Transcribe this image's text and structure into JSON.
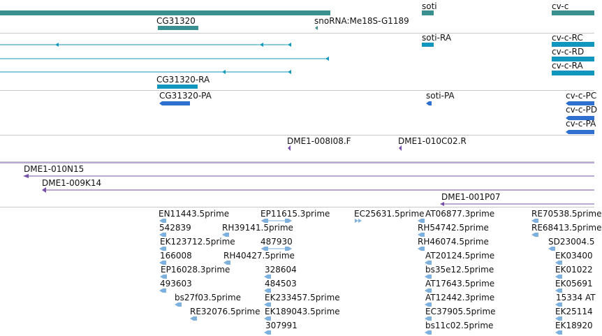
{
  "colors": {
    "gene": "#3a8f91",
    "mrna": "#1196bd",
    "protein": "#2f6fcf",
    "clone": "#7650a8",
    "est": "#7fb1de",
    "divider": "#c8c8c8"
  },
  "genes": {
    "soti": "soti",
    "cvc": "cv-c",
    "cg31320": "CG31320",
    "snorna": "snoRNA:Me18S-G1189"
  },
  "mrna": {
    "soti_ra": "soti-RA",
    "cvc_rc": "cv-c-RC",
    "cvc_rd": "cv-c-RD",
    "cvc_ra": "cv-c-RA",
    "cg31320_ra": "CG31320-RA"
  },
  "protein": {
    "cg31320_pa": "CG31320-PA",
    "soti_pa": "soti-PA",
    "cvc_pc": "cv-c-PC",
    "cvc_pd": "cv-c-PD",
    "cvc_pa": "cv-c-PA"
  },
  "clones_short": {
    "c1": "DME1-008I08.F",
    "c2": "DME1-010C02.R"
  },
  "clones_long": {
    "c1": "DME1-010N15",
    "c2": "DME1-009K14",
    "c3": "DME1-001P07"
  },
  "est": {
    "col1": [
      "EN11443.5prime",
      "542839",
      "EK123712.5prime",
      "166008",
      "EP16028.3prime",
      "493603"
    ],
    "e_bs27f03": "bs27f03.5prime",
    "e_re32076": "RE32076.5prime",
    "e_rh39141": "RH39141.5prime",
    "e_rh40427": "RH40427.5prime",
    "col3": [
      "EP11615.3prime",
      "487930",
      "328604",
      "484503",
      "EK233457.5prime",
      "EK189043.5prime",
      "307991"
    ],
    "e_ec25631": "EC25631.5prime",
    "col5": [
      "AT06877.3prime",
      "RH54742.5prime",
      "RH46074.5prime",
      "AT20124.5prime",
      "bs35e12.5prime",
      "AT17643.5prime",
      "AT12442.3prime",
      "EC37905.5prime",
      "bs11c02.5prime"
    ],
    "col6a": [
      "RE70538.5prime",
      "RE68413.5prime"
    ],
    "col6b": [
      "SD23004.5",
      "EK03400",
      "EK01022",
      "EK05691",
      "15334  AT",
      "EK25114",
      "EK18920"
    ]
  }
}
